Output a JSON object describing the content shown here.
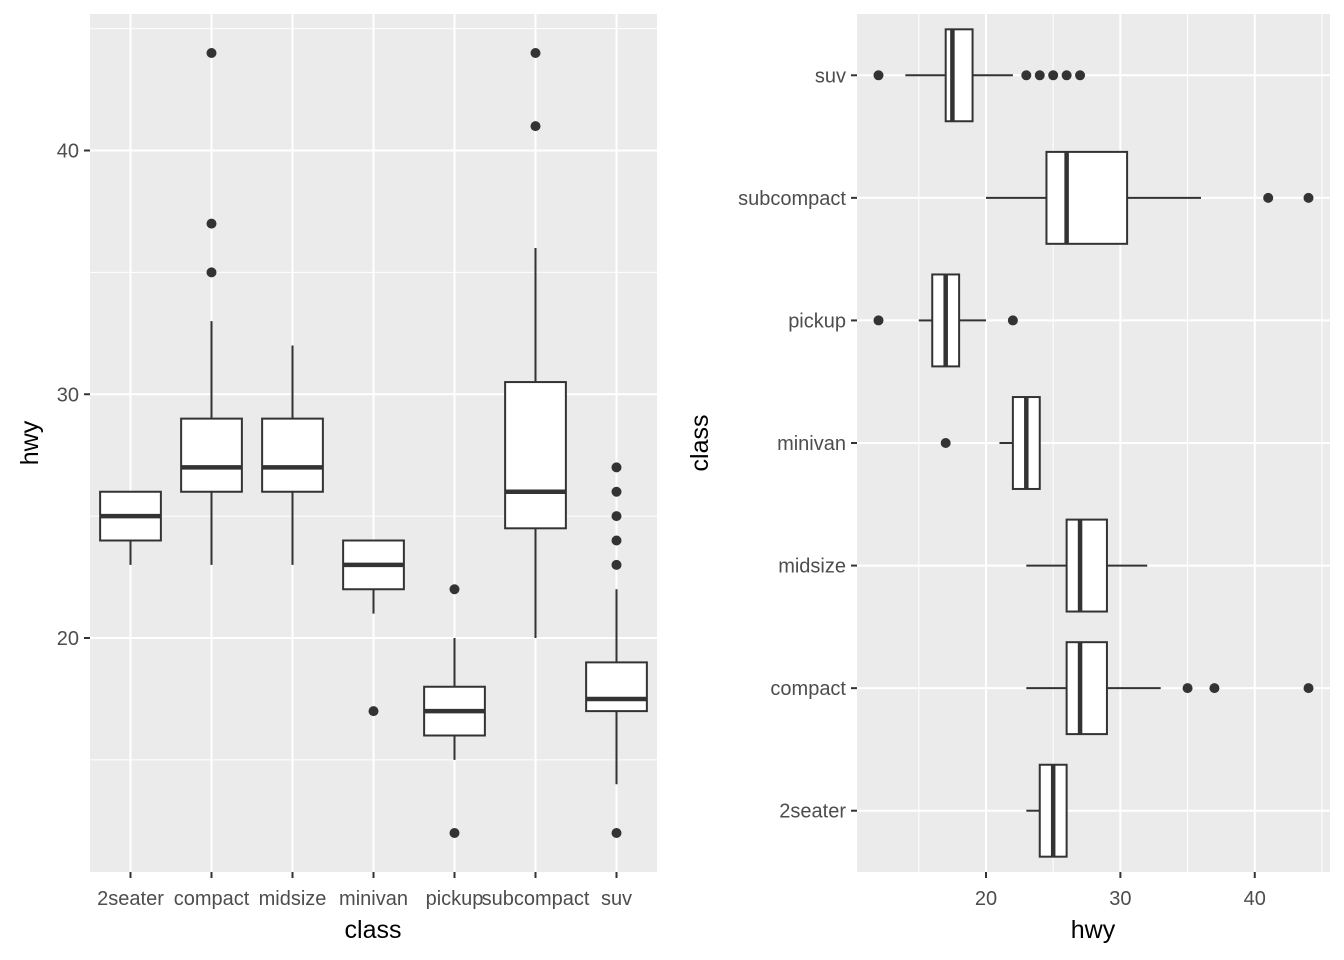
{
  "colors": {
    "panel_background": "#ebebeb",
    "grid": "#ffffff",
    "box_fill": "#ffffff",
    "box_stroke": "#333333",
    "tick_label": "#4d4d4d",
    "axis_title": "#000000"
  },
  "chart_data": [
    {
      "type": "boxplot",
      "orientation": "vertical",
      "xlabel": "class",
      "ylabel": "hwy",
      "ylim": [
        10.4,
        45.6
      ],
      "y_major_ticks": [
        20,
        30,
        40
      ],
      "y_minor_ticks": [
        15,
        25,
        35,
        45
      ],
      "y_tick_labels": [
        "20",
        "30",
        "40"
      ],
      "categories": [
        "2seater",
        "compact",
        "midsize",
        "minivan",
        "pickup",
        "subcompact",
        "suv"
      ],
      "grid": true,
      "legend": "none",
      "boxes": [
        {
          "category": "2seater",
          "whisker_low": 23,
          "q1": 24,
          "median": 25,
          "q3": 26,
          "whisker_high": 26,
          "outliers": []
        },
        {
          "category": "compact",
          "whisker_low": 23,
          "q1": 26,
          "median": 27,
          "q3": 29,
          "whisker_high": 33,
          "outliers": [
            35,
            37,
            44
          ]
        },
        {
          "category": "midsize",
          "whisker_low": 23,
          "q1": 26,
          "median": 27,
          "q3": 29,
          "whisker_high": 32,
          "outliers": []
        },
        {
          "category": "minivan",
          "whisker_low": 21,
          "q1": 22,
          "median": 23,
          "q3": 24,
          "whisker_high": 24,
          "outliers": [
            17
          ]
        },
        {
          "category": "pickup",
          "whisker_low": 15,
          "q1": 16,
          "median": 17,
          "q3": 18,
          "whisker_high": 20,
          "outliers": [
            12,
            22
          ]
        },
        {
          "category": "subcompact",
          "whisker_low": 20,
          "q1": 24.5,
          "median": 26,
          "q3": 30.5,
          "whisker_high": 36,
          "outliers": [
            41,
            44
          ]
        },
        {
          "category": "suv",
          "whisker_low": 14,
          "q1": 17,
          "median": 17.5,
          "q3": 19,
          "whisker_high": 22,
          "outliers": [
            12,
            23,
            24,
            25,
            26,
            27
          ]
        }
      ]
    },
    {
      "type": "boxplot",
      "orientation": "horizontal",
      "xlabel": "hwy",
      "ylabel": "class",
      "xlim": [
        10.4,
        45.6
      ],
      "x_major_ticks": [
        20,
        30,
        40
      ],
      "x_minor_ticks": [
        15,
        25,
        35,
        45
      ],
      "x_tick_labels": [
        "20",
        "30",
        "40"
      ],
      "categories": [
        "2seater",
        "compact",
        "midsize",
        "minivan",
        "pickup",
        "subcompact",
        "suv"
      ],
      "grid": true,
      "legend": "none",
      "boxes": [
        {
          "category": "2seater",
          "whisker_low": 23,
          "q1": 24,
          "median": 25,
          "q3": 26,
          "whisker_high": 26,
          "outliers": []
        },
        {
          "category": "compact",
          "whisker_low": 23,
          "q1": 26,
          "median": 27,
          "q3": 29,
          "whisker_high": 33,
          "outliers": [
            35,
            37,
            44
          ]
        },
        {
          "category": "midsize",
          "whisker_low": 23,
          "q1": 26,
          "median": 27,
          "q3": 29,
          "whisker_high": 32,
          "outliers": []
        },
        {
          "category": "minivan",
          "whisker_low": 21,
          "q1": 22,
          "median": 23,
          "q3": 24,
          "whisker_high": 24,
          "outliers": [
            17
          ]
        },
        {
          "category": "pickup",
          "whisker_low": 15,
          "q1": 16,
          "median": 17,
          "q3": 18,
          "whisker_high": 20,
          "outliers": [
            12,
            22
          ]
        },
        {
          "category": "subcompact",
          "whisker_low": 20,
          "q1": 24.5,
          "median": 26,
          "q3": 30.5,
          "whisker_high": 36,
          "outliers": [
            41,
            44
          ]
        },
        {
          "category": "suv",
          "whisker_low": 14,
          "q1": 17,
          "median": 17.5,
          "q3": 19,
          "whisker_high": 22,
          "outliers": [
            12,
            23,
            24,
            25,
            26,
            27
          ]
        }
      ]
    }
  ]
}
